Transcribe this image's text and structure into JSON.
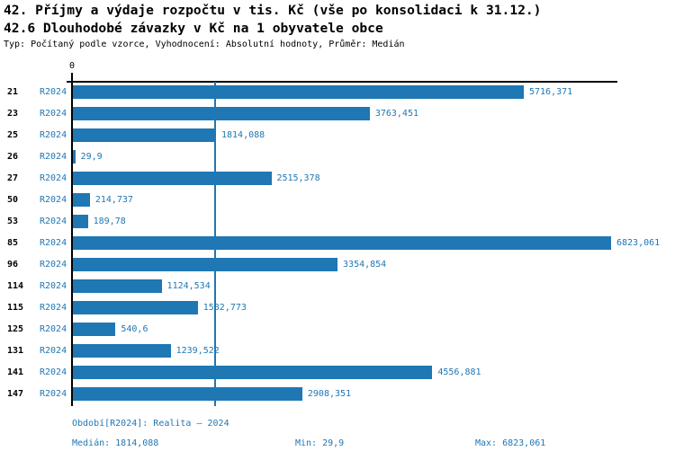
{
  "title": "42. Příjmy a výdaje rozpočtu v tis. Kč (vše po konsolidaci k 31.12.)",
  "subtitle": "42.6 Dlouhodobé závazky v Kč na 1 obyvatele obce",
  "meta": "Typ: Počítaný podle vzorce, Vyhodnocení: Absolutní hodnoty, Průměr: Medián",
  "colors": {
    "bar": "#1F77B4",
    "accent_text": "#1F77B4",
    "axis": "#000000"
  },
  "chart_data": {
    "type": "bar",
    "orientation": "horizontal",
    "title": "42.6 Dlouhodobé závazky v Kč na 1 obyvatele obce",
    "axis_zero_label": "0",
    "xlim": [
      0,
      6900
    ],
    "grid": "median line only",
    "median_line_value": 1814.088,
    "series_label": "R2024",
    "categories": [
      "21",
      "23",
      "25",
      "26",
      "27",
      "50",
      "53",
      "85",
      "96",
      "114",
      "115",
      "125",
      "131",
      "141",
      "147"
    ],
    "values": [
      5716.371,
      3763.451,
      1814.088,
      29.9,
      2515.378,
      214.737,
      189.78,
      6823.061,
      3354.854,
      1124.534,
      1582.773,
      540.6,
      1239.522,
      4556.881,
      2908.351
    ],
    "rows": [
      {
        "category": "21",
        "series": "R2024",
        "value": 5716.371,
        "label": "5716,371"
      },
      {
        "category": "23",
        "series": "R2024",
        "value": 3763.451,
        "label": "3763,451"
      },
      {
        "category": "25",
        "series": "R2024",
        "value": 1814.088,
        "label": "1814,088"
      },
      {
        "category": "26",
        "series": "R2024",
        "value": 29.9,
        "label": "29,9"
      },
      {
        "category": "27",
        "series": "R2024",
        "value": 2515.378,
        "label": "2515,378"
      },
      {
        "category": "50",
        "series": "R2024",
        "value": 214.737,
        "label": "214,737"
      },
      {
        "category": "53",
        "series": "R2024",
        "value": 189.78,
        "label": "189,78"
      },
      {
        "category": "85",
        "series": "R2024",
        "value": 6823.061,
        "label": "6823,061"
      },
      {
        "category": "96",
        "series": "R2024",
        "value": 3354.854,
        "label": "3354,854"
      },
      {
        "category": "114",
        "series": "R2024",
        "value": 1124.534,
        "label": "1124,534"
      },
      {
        "category": "115",
        "series": "R2024",
        "value": 1582.773,
        "label": "1582,773"
      },
      {
        "category": "125",
        "series": "R2024",
        "value": 540.6,
        "label": "540,6"
      },
      {
        "category": "131",
        "series": "R2024",
        "value": 1239.522,
        "label": "1239,522"
      },
      {
        "category": "141",
        "series": "R2024",
        "value": 4556.881,
        "label": "4556,881"
      },
      {
        "category": "147",
        "series": "R2024",
        "value": 2908.351,
        "label": "2908,351"
      }
    ],
    "stats": {
      "median": 1814.088,
      "min": 29.9,
      "max": 6823.061
    }
  },
  "footer": {
    "period": "Období[R2024]: Realita – 2024",
    "median": "Medián: 1814,088",
    "min": "Min: 29,9",
    "max": "Max: 6823,061"
  }
}
